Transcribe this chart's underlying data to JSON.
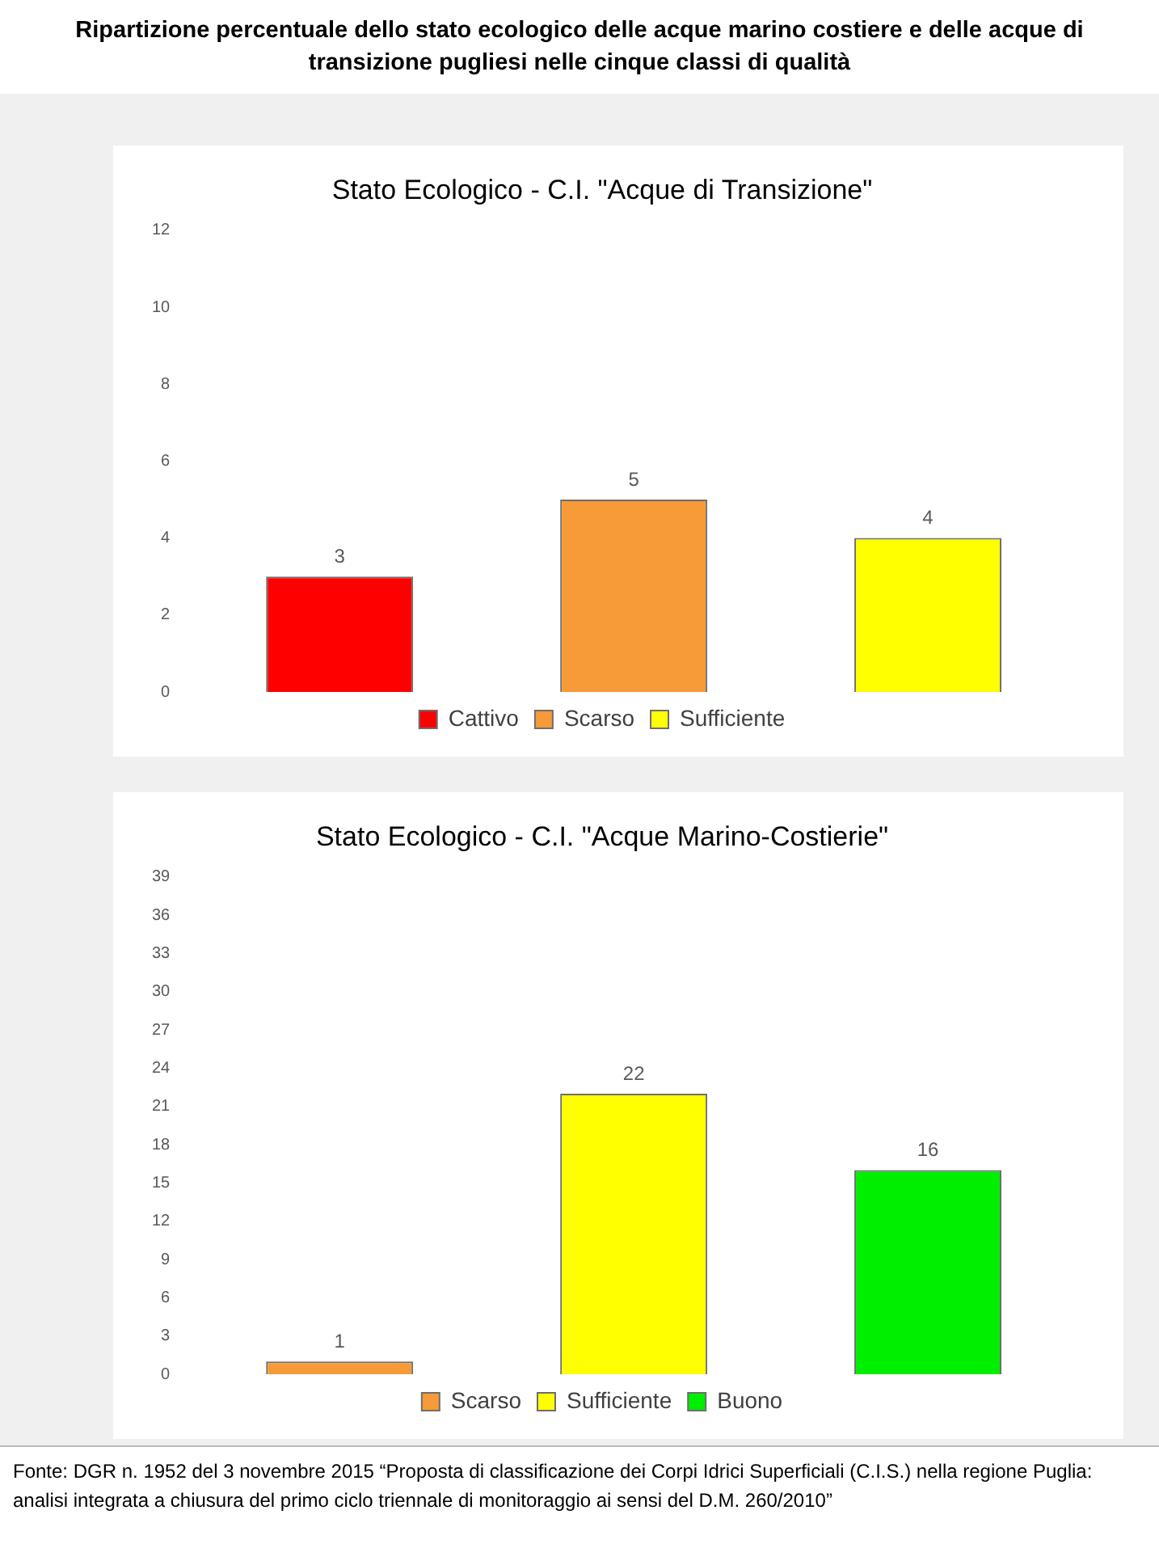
{
  "chart_data": [
    {
      "type": "bar",
      "title": "Stato Ecologico - C.I. \"Acque di Transizione\"",
      "annotations": [
        "Ripartizione percentuale dello stato ecologico delle acque marino costiere e delle acque di transizione pugliesi nelle cinque classi di qualità"
      ],
      "categories": [
        null,
        null,
        null
      ],
      "stacked": true,
      "series": [
        {
          "name": "Cattivo",
          "color": "#ff0000",
          "values": [
            3,
            null,
            null
          ]
        },
        {
          "name": "Scarso",
          "color": "#f79a38",
          "values": [
            null,
            5,
            null
          ]
        },
        {
          "name": "Sufficiente",
          "color": "#ffff00",
          "values": [
            null,
            null,
            4
          ]
        }
      ],
      "ylim": [
        0,
        12
      ],
      "yticks": [
        0,
        2,
        4,
        6,
        8,
        10,
        12
      ],
      "grid": false,
      "legend": "bottom",
      "data_labels": true,
      "tick_labels": "y"
    },
    {
      "type": "bar",
      "title": "Stato Ecologico - C.I. \"Acque Marino-Costierie\"",
      "annotations": [
        "Fonte: DGR n. 1952 del 3 novembre 2015 “Proposta di classificazione dei Corpi Idrici Superficiali (C.I.S.) nella regione Puglia: analisi integrata a chiusura del primo ciclo triennale di monitoraggio ai sensi del D.M. 260/2010”"
      ],
      "categories": [
        null,
        null,
        null
      ],
      "stacked": true,
      "series": [
        {
          "name": "Scarso",
          "color": "#f79a38",
          "values": [
            1,
            null,
            null
          ]
        },
        {
          "name": "Sufficiente",
          "color": "#ffff00",
          "values": [
            null,
            22,
            null
          ]
        },
        {
          "name": "Buono",
          "color": "#00ee00",
          "values": [
            null,
            null,
            16
          ]
        }
      ],
      "ylim": [
        0,
        39
      ],
      "yticks": [
        0,
        3,
        6,
        9,
        12,
        15,
        18,
        21,
        24,
        27,
        30,
        33,
        36,
        39
      ],
      "grid": false,
      "legend": "bottom",
      "data_labels": true,
      "tick_labels": "y"
    }
  ]
}
